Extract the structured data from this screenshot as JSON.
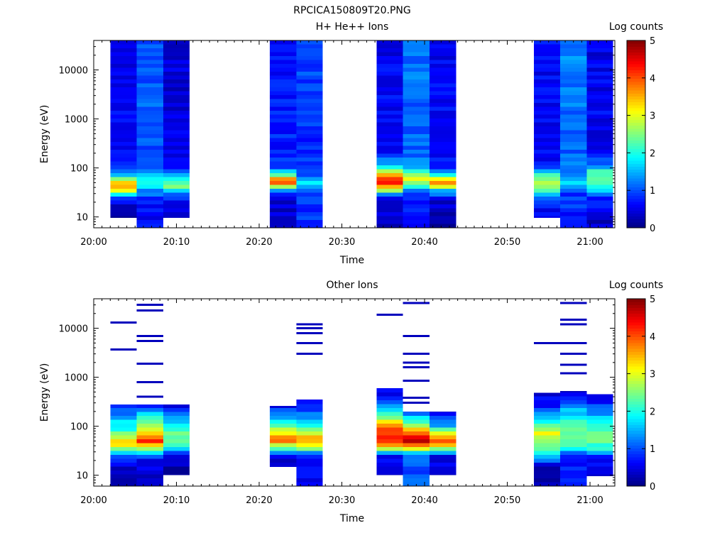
{
  "figure": {
    "file_title": "RPCICA150809T20.PNG"
  },
  "chart_data": [
    {
      "type": "heatmap",
      "title": "H+ He++ Ions",
      "xlabel": "Time",
      "ylabel": "Energy (eV)",
      "colorbar_label": "Log counts",
      "x_range": [
        "20:00",
        "21:03"
      ],
      "y_range": [
        6,
        40000
      ],
      "y_scale": "log",
      "c_range": [
        0,
        5
      ],
      "x_ticks": [
        "20:00",
        "20:10",
        "20:20",
        "20:30",
        "20:40",
        "20:50",
        "21:00"
      ],
      "y_ticks": [
        "10",
        "100",
        "1000",
        "10000"
      ],
      "c_ticks": [
        "0",
        "1",
        "2",
        "3",
        "4",
        "5"
      ],
      "columns": [
        {
          "start": "20:02.0",
          "end": "20:05.2",
          "e_min": 9.5,
          "e_max": 40000,
          "profile": [
            [
              10,
              0.3
            ],
            [
              20,
              0.5
            ],
            [
              25,
              1.2
            ],
            [
              35,
              3.0
            ],
            [
              45,
              3.6
            ],
            [
              60,
              2.5
            ],
            [
              75,
              1.4
            ],
            [
              120,
              0.6
            ],
            [
              40000,
              0.5
            ]
          ]
        },
        {
          "start": "20:05.2",
          "end": "20:08.4",
          "e_min": 6,
          "e_max": 40000,
          "profile": [
            [
              6,
              0.6
            ],
            [
              20,
              0.7
            ],
            [
              35,
              1.3
            ],
            [
              50,
              2.2
            ],
            [
              60,
              2.0
            ],
            [
              80,
              1.3
            ],
            [
              150,
              1.0
            ],
            [
              40000,
              1.1
            ]
          ]
        },
        {
          "start": "20:08.4",
          "end": "20:11.6",
          "e_min": 9.5,
          "e_max": 40000,
          "profile": [
            [
              10,
              0.4
            ],
            [
              25,
              0.8
            ],
            [
              35,
              1.8
            ],
            [
              45,
              2.6
            ],
            [
              60,
              1.9
            ],
            [
              80,
              0.9
            ],
            [
              150,
              0.5
            ],
            [
              40000,
              0.4
            ]
          ]
        },
        {
          "start": "20:21.3",
          "end": "20:24.5",
          "e_min": 6,
          "e_max": 40000,
          "profile": [
            [
              6,
              0.3
            ],
            [
              25,
              0.5
            ],
            [
              35,
              1.4
            ],
            [
              50,
              3.9
            ],
            [
              60,
              3.4
            ],
            [
              75,
              2.0
            ],
            [
              110,
              0.8
            ],
            [
              40000,
              0.6
            ]
          ]
        },
        {
          "start": "20:24.5",
          "end": "20:27.7",
          "e_min": 6,
          "e_max": 40000,
          "profile": [
            [
              6,
              0.8
            ],
            [
              25,
              0.9
            ],
            [
              40,
              1.5
            ],
            [
              55,
              1.8
            ],
            [
              70,
              1.0
            ],
            [
              150,
              0.8
            ],
            [
              40000,
              1.0
            ]
          ]
        },
        {
          "start": "20:34.2",
          "end": "20:37.4",
          "e_min": 6,
          "e_max": 40000,
          "profile": [
            [
              6,
              0.2
            ],
            [
              25,
              0.6
            ],
            [
              35,
              2.8
            ],
            [
              45,
              4.0
            ],
            [
              60,
              4.2
            ],
            [
              80,
              3.1
            ],
            [
              110,
              1.5
            ],
            [
              200,
              0.7
            ],
            [
              40000,
              0.5
            ]
          ]
        },
        {
          "start": "20:37.4",
          "end": "20:40.6",
          "e_min": 6,
          "e_max": 40000,
          "profile": [
            [
              6,
              0.5
            ],
            [
              30,
              0.8
            ],
            [
              45,
              2.2
            ],
            [
              60,
              3.2
            ],
            [
              75,
              2.6
            ],
            [
              100,
              1.4
            ],
            [
              200,
              1.1
            ],
            [
              40000,
              1.2
            ]
          ]
        },
        {
          "start": "20:40.6",
          "end": "20:43.8",
          "e_min": 6,
          "e_max": 40000,
          "profile": [
            [
              6,
              0.2
            ],
            [
              20,
              0.4
            ],
            [
              35,
              1.5
            ],
            [
              45,
              3.8
            ],
            [
              60,
              3.3
            ],
            [
              75,
              1.8
            ],
            [
              110,
              0.7
            ],
            [
              40000,
              0.5
            ]
          ]
        },
        {
          "start": "20:53.2",
          "end": "20:56.4",
          "e_min": 9.5,
          "e_max": 40000,
          "profile": [
            [
              10,
              0.5
            ],
            [
              25,
              1.0
            ],
            [
              35,
              2.4
            ],
            [
              55,
              2.6
            ],
            [
              75,
              2.2
            ],
            [
              90,
              1.3
            ],
            [
              150,
              0.6
            ],
            [
              40000,
              0.6
            ]
          ]
        },
        {
          "start": "20:56.4",
          "end": "20:59.6",
          "e_min": 6,
          "e_max": 40000,
          "profile": [
            [
              6,
              0.7
            ],
            [
              30,
              0.9
            ],
            [
              45,
              1.8
            ],
            [
              60,
              1.6
            ],
            [
              90,
              1.2
            ],
            [
              200,
              1.1
            ],
            [
              40000,
              1.3
            ]
          ]
        },
        {
          "start": "20:59.6",
          "end": "21:02.8",
          "e_min": 6,
          "e_max": 40000,
          "profile": [
            [
              6,
              0.3
            ],
            [
              25,
              0.8
            ],
            [
              40,
              2.0
            ],
            [
              60,
              2.5
            ],
            [
              90,
              2.2
            ],
            [
              110,
              1.2
            ],
            [
              200,
              0.6
            ],
            [
              40000,
              0.5
            ]
          ]
        }
      ]
    },
    {
      "type": "heatmap",
      "title": "Other Ions",
      "xlabel": "Time",
      "ylabel": "Energy (eV)",
      "colorbar_label": "Log counts",
      "x_range": [
        "20:00",
        "21:03"
      ],
      "y_range": [
        6,
        40000
      ],
      "y_scale": "log",
      "c_range": [
        0,
        5
      ],
      "x_ticks": [
        "20:00",
        "20:10",
        "20:20",
        "20:30",
        "20:40",
        "20:50",
        "21:00"
      ],
      "y_ticks": [
        "10",
        "100",
        "1000",
        "10000"
      ],
      "c_ticks": [
        "0",
        "1",
        "2",
        "3",
        "4",
        "5"
      ],
      "columns": [
        {
          "start": "20:02.0",
          "end": "20:05.2",
          "e_min": 6,
          "e_max": 280,
          "profile": [
            [
              6,
              0.1
            ],
            [
              15,
              0.3
            ],
            [
              25,
              1.2
            ],
            [
              35,
              2.6
            ],
            [
              45,
              3.3
            ],
            [
              60,
              2.8
            ],
            [
              90,
              2.0
            ],
            [
              150,
              1.5
            ],
            [
              280,
              0.5
            ]
          ],
          "sparse": [
            3700,
            13000
          ]
        },
        {
          "start": "20:05.2",
          "end": "20:08.4",
          "e_min": 6,
          "e_max": 280,
          "profile": [
            [
              6,
              0.5
            ],
            [
              20,
              0.4
            ],
            [
              35,
              2.6
            ],
            [
              50,
              4.1
            ],
            [
              70,
              3.6
            ],
            [
              100,
              2.6
            ],
            [
              180,
              1.6
            ],
            [
              280,
              0.8
            ]
          ],
          "sparse": [
            400,
            800,
            1900,
            5500,
            7000,
            23000,
            30000
          ]
        },
        {
          "start": "20:08.4",
          "end": "20:11.6",
          "e_min": 10,
          "e_max": 280,
          "profile": [
            [
              10,
              0.2
            ],
            [
              25,
              0.5
            ],
            [
              35,
              1.8
            ],
            [
              50,
              2.3
            ],
            [
              70,
              2.4
            ],
            [
              100,
              1.9
            ],
            [
              180,
              1.0
            ],
            [
              280,
              0.5
            ]
          ]
        },
        {
          "start": "20:21.3",
          "end": "20:24.5",
          "e_min": 15,
          "e_max": 260,
          "profile": [
            [
              15,
              0.3
            ],
            [
              25,
              0.6
            ],
            [
              35,
              2.1
            ],
            [
              50,
              3.8
            ],
            [
              70,
              3.2
            ],
            [
              100,
              2.3
            ],
            [
              180,
              1.2
            ],
            [
              260,
              0.5
            ]
          ]
        },
        {
          "start": "20:24.5",
          "end": "20:27.7",
          "e_min": 6,
          "e_max": 350,
          "profile": [
            [
              6,
              0.6
            ],
            [
              25,
              0.7
            ],
            [
              35,
              2.6
            ],
            [
              50,
              3.6
            ],
            [
              70,
              3.0
            ],
            [
              100,
              2.0
            ],
            [
              200,
              1.1
            ],
            [
              350,
              0.4
            ]
          ],
          "sparse": [
            3000,
            5000,
            8000,
            10000,
            12000
          ]
        },
        {
          "start": "20:34.2",
          "end": "20:37.4",
          "e_min": 10,
          "e_max": 600,
          "profile": [
            [
              10,
              0.2
            ],
            [
              25,
              0.6
            ],
            [
              35,
              2.8
            ],
            [
              50,
              4.2
            ],
            [
              70,
              4.3
            ],
            [
              110,
              3.4
            ],
            [
              180,
              2.2
            ],
            [
              400,
              0.8
            ],
            [
              600,
              0.4
            ]
          ],
          "sparse": [
            19000
          ]
        },
        {
          "start": "20:37.4",
          "end": "20:40.6",
          "e_min": 6,
          "e_max": 200,
          "profile": [
            [
              6,
              1.0
            ],
            [
              25,
              1.0
            ],
            [
              35,
              3.2
            ],
            [
              50,
              4.6
            ],
            [
              65,
              4.4
            ],
            [
              90,
              3.2
            ],
            [
              140,
              1.8
            ],
            [
              200,
              0.8
            ]
          ],
          "sparse": [
            300,
            380,
            850,
            1600,
            2000,
            3000,
            7000,
            33000
          ]
        },
        {
          "start": "20:40.6",
          "end": "20:43.8",
          "e_min": 10,
          "e_max": 200,
          "profile": [
            [
              10,
              0.3
            ],
            [
              25,
              0.6
            ],
            [
              35,
              2.6
            ],
            [
              50,
              4.0
            ],
            [
              70,
              3.2
            ],
            [
              100,
              1.6
            ],
            [
              200,
              0.3
            ]
          ]
        },
        {
          "start": "20:53.2",
          "end": "20:56.4",
          "e_min": 6,
          "e_max": 480,
          "profile": [
            [
              6,
              0.2
            ],
            [
              15,
              0.3
            ],
            [
              25,
              1.7
            ],
            [
              45,
              2.6
            ],
            [
              70,
              3.0
            ],
            [
              110,
              2.3
            ],
            [
              200,
              1.0
            ],
            [
              480,
              0.3
            ]
          ],
          "sparse": [
            5000
          ]
        },
        {
          "start": "20:56.4",
          "end": "20:59.6",
          "e_min": 6,
          "e_max": 520,
          "profile": [
            [
              6,
              0.7
            ],
            [
              25,
              0.8
            ],
            [
              35,
              2.1
            ],
            [
              50,
              2.3
            ],
            [
              80,
              2.6
            ],
            [
              120,
              2.2
            ],
            [
              250,
              1.3
            ],
            [
              520,
              0.3
            ]
          ],
          "sparse": [
            1200,
            1800,
            3000,
            5000,
            12000,
            15000,
            33000
          ]
        },
        {
          "start": "20:59.6",
          "end": "21:02.8",
          "e_min": 9.5,
          "e_max": 450,
          "profile": [
            [
              10,
              0.4
            ],
            [
              25,
              0.7
            ],
            [
              35,
              2.1
            ],
            [
              50,
              2.3
            ],
            [
              80,
              2.4
            ],
            [
              120,
              2.0
            ],
            [
              250,
              1.0
            ],
            [
              450,
              0.3
            ]
          ]
        }
      ]
    }
  ]
}
